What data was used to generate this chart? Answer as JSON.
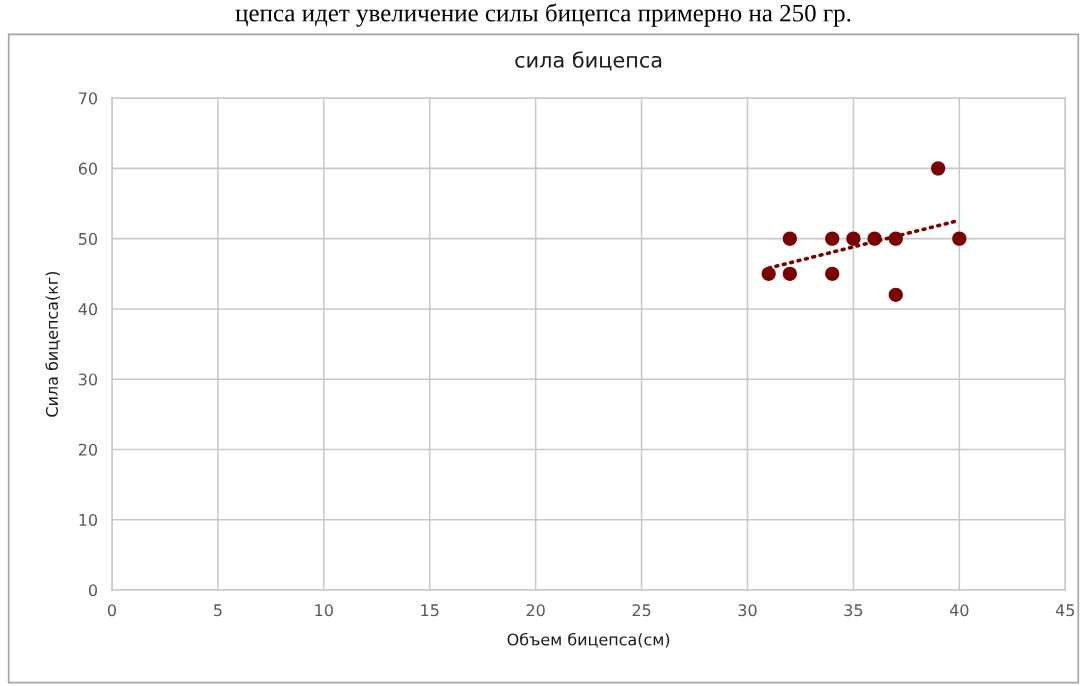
{
  "chart_data": {
    "type": "scatter",
    "title": "сила бицепса",
    "xlabel": "Объем бицепса(см)",
    "ylabel": "Сила бицепса(кг)",
    "annotations": [
      "цепса идет увеличение силы бицепса примерно на 250 гр."
    ],
    "xlim": [
      0,
      45
    ],
    "xticks": [
      0,
      5,
      10,
      15,
      20,
      25,
      30,
      35,
      40,
      45
    ],
    "ylim": [
      0,
      70
    ],
    "yticks": [
      0,
      10,
      20,
      30,
      40,
      50,
      60,
      70
    ],
    "grid": true,
    "series": [
      {
        "color": "#7b0000",
        "marker": "circle",
        "x": [
          31,
          32,
          32,
          34,
          34,
          35,
          36,
          37,
          37,
          39,
          40
        ],
        "values": [
          45,
          45,
          50,
          50,
          45,
          50,
          50,
          50,
          42,
          60,
          50
        ]
      },
      {
        "type": "line",
        "color": "#7b0000",
        "marker": "none",
        "line_style": "dotted",
        "x": [
          31,
          40
        ],
        "values": [
          45.8,
          52.6
        ]
      }
    ]
  }
}
